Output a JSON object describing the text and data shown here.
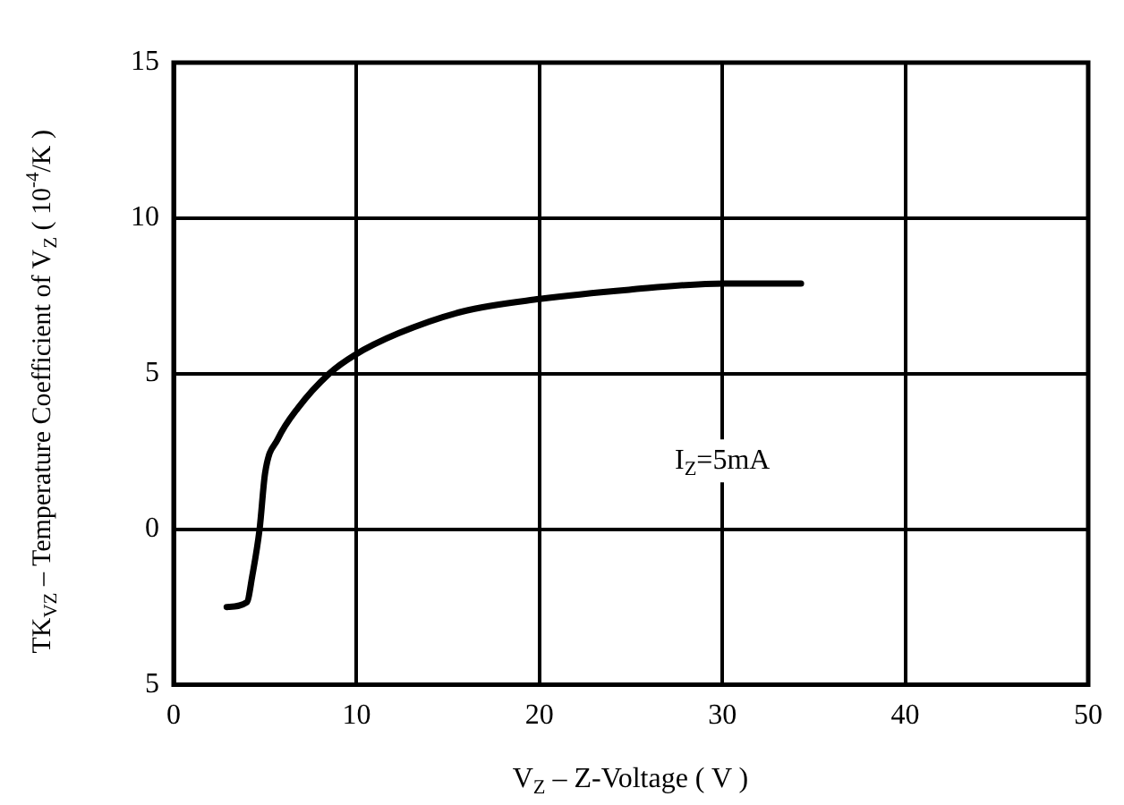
{
  "chart_data": {
    "type": "line",
    "xlabel": "V$_{Z}$ – Z-Voltage ( V )",
    "ylabel": "TK$_{VZ}$ – Temperature Coefficient of V$_{Z}$ ( 10$^{-4}$/K )",
    "annotations": [
      "I$_{Z}$=5mA"
    ],
    "x": [
      2.9,
      4.0,
      4.3,
      4.7,
      5.0,
      5.7,
      6.8,
      8.5,
      9.9,
      12.3,
      15.8,
      20,
      24.9,
      30.1,
      34.3
    ],
    "series": [
      {
        "color": "#000000",
        "values": [
          -2.5,
          -2.35,
          -1.5,
          0,
          1.8,
          2.9,
          3.9,
          5,
          5.6,
          6.3,
          7.0,
          7.4,
          7.7,
          7.9,
          7.9
        ]
      }
    ],
    "xlim": [
      0,
      50
    ],
    "xticks": [
      0,
      10,
      20,
      30,
      40,
      50
    ],
    "ylim": [
      -5,
      15
    ],
    "yticks": [
      {
        "value": -5,
        "label": "5"
      },
      0,
      5,
      10,
      15
    ],
    "grid": true,
    "legend": false,
    "marker": "none",
    "line_style": "solid"
  }
}
